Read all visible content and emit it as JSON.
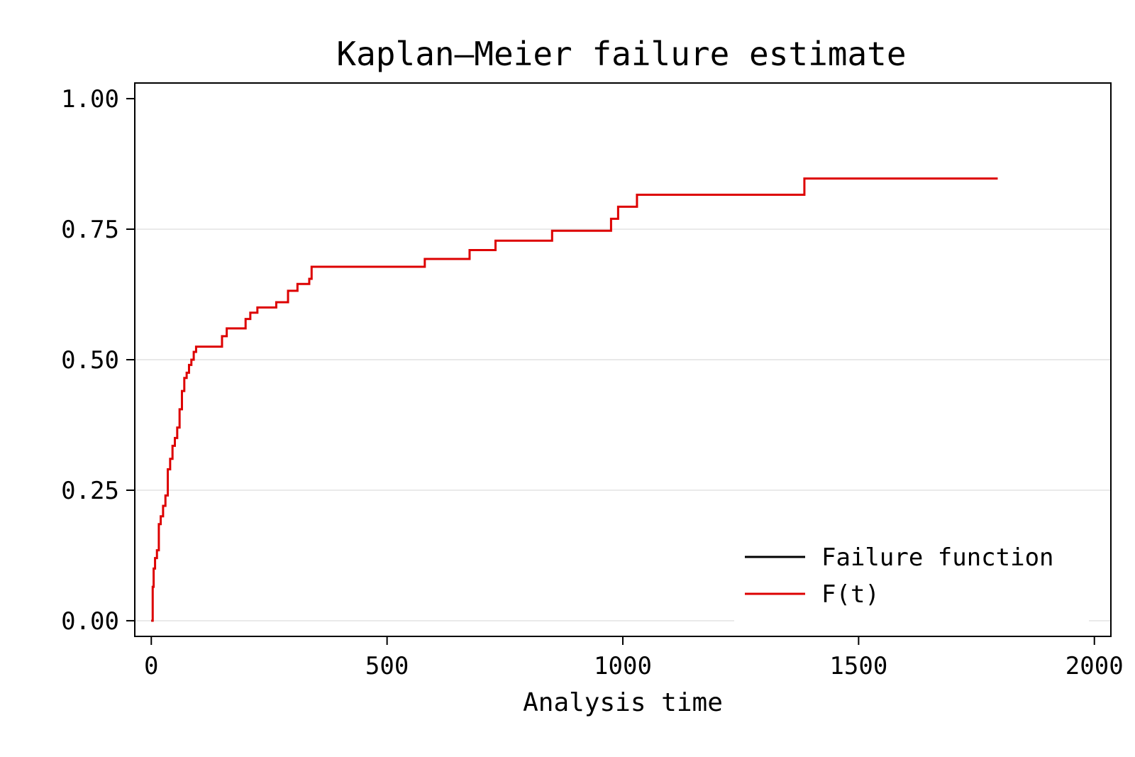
{
  "chart_data": {
    "type": "line",
    "title": "Kaplan–Meier failure estimate",
    "xlabel": "Analysis time",
    "ylabel": "",
    "xlim": [
      -35,
      2035
    ],
    "ylim": [
      -0.03,
      1.03
    ],
    "x_ticks": [
      0,
      500,
      1000,
      1500,
      2000
    ],
    "x_tick_labels": [
      "0",
      "500",
      "1000",
      "1500",
      "2000"
    ],
    "y_ticks": [
      0,
      0.25,
      0.5,
      0.75,
      1.0
    ],
    "y_tick_labels": [
      "0.00",
      "0.25",
      "0.50",
      "0.75",
      "1.00"
    ],
    "grid": "horizontal",
    "legend_position": "bottom-right",
    "series": [
      {
        "name": "Failure function",
        "color": "#000000",
        "step": true,
        "x": [
          0,
          3
        ],
        "y": [
          0.0,
          0.0
        ]
      },
      {
        "name": "F(t)",
        "color": "#dd0000",
        "step": true,
        "x": [
          0,
          3,
          5,
          8,
          12,
          16,
          20,
          25,
          30,
          35,
          40,
          45,
          50,
          55,
          60,
          65,
          70,
          75,
          80,
          85,
          90,
          95,
          100,
          110,
          150,
          160,
          175,
          200,
          210,
          225,
          265,
          290,
          310,
          335,
          340,
          580,
          675,
          730,
          850,
          975,
          990,
          1030,
          1385,
          1795
        ],
        "y": [
          0.0,
          0.065,
          0.1,
          0.12,
          0.135,
          0.185,
          0.2,
          0.22,
          0.24,
          0.29,
          0.31,
          0.335,
          0.35,
          0.37,
          0.405,
          0.44,
          0.465,
          0.475,
          0.49,
          0.5,
          0.515,
          0.525,
          0.525,
          0.525,
          0.545,
          0.56,
          0.56,
          0.578,
          0.59,
          0.6,
          0.61,
          0.632,
          0.645,
          0.655,
          0.678,
          0.693,
          0.71,
          0.728,
          0.747,
          0.77,
          0.793,
          0.816,
          0.847,
          0.847
        ]
      }
    ]
  }
}
